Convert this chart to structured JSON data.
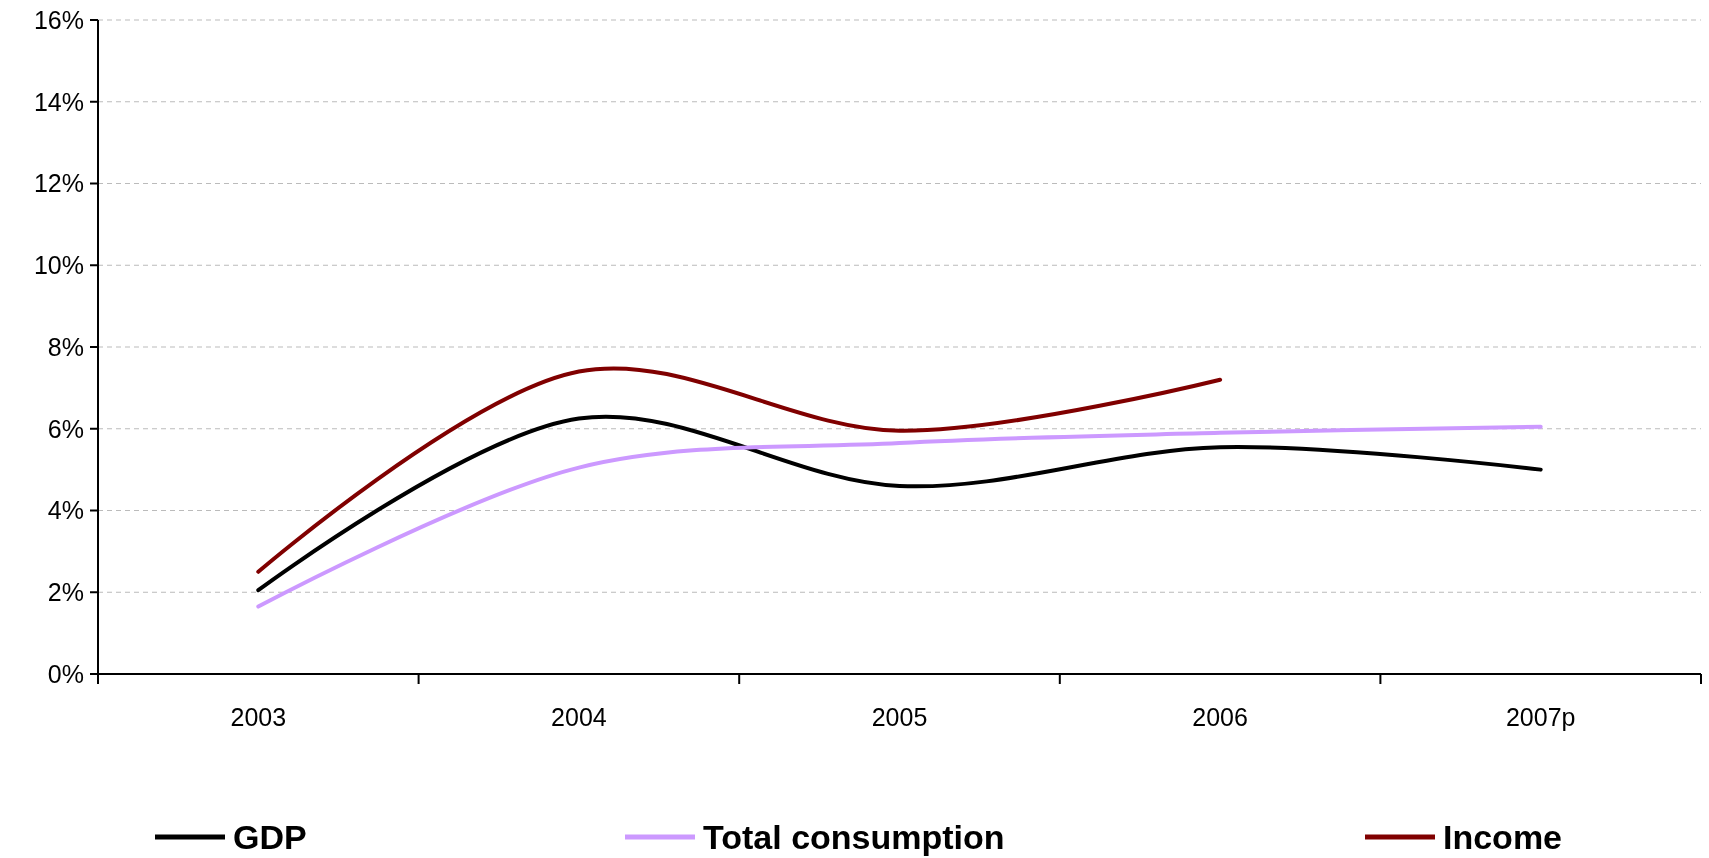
{
  "chart_data": {
    "type": "line",
    "categories": [
      "2003",
      "2004",
      "2005",
      "2006",
      "2007p"
    ],
    "series": [
      {
        "name": "GDP",
        "color": "#000000",
        "values": [
          2.05,
          6.25,
          4.6,
          5.55,
          5.0
        ]
      },
      {
        "name": "Total consumption",
        "color": "#cc99ff",
        "values": [
          1.65,
          5.05,
          5.65,
          5.9,
          6.05
        ]
      },
      {
        "name": "Income",
        "color": "#800000",
        "values": [
          2.5,
          7.4,
          5.95,
          7.2,
          null
        ]
      }
    ],
    "ylim": [
      0,
      16
    ],
    "yticks": [
      {
        "value": 0,
        "label": "0%"
      },
      {
        "value": 2,
        "label": "2%"
      },
      {
        "value": 4,
        "label": "4%"
      },
      {
        "value": 6,
        "label": "6%"
      },
      {
        "value": 8,
        "label": "8%"
      },
      {
        "value": 10,
        "label": "10%"
      },
      {
        "value": 12,
        "label": "12%"
      },
      {
        "value": 14,
        "label": "14%"
      },
      {
        "value": 16,
        "label": "16%"
      }
    ],
    "grid": "y",
    "legend": "bottom",
    "line_style": "solid"
  }
}
